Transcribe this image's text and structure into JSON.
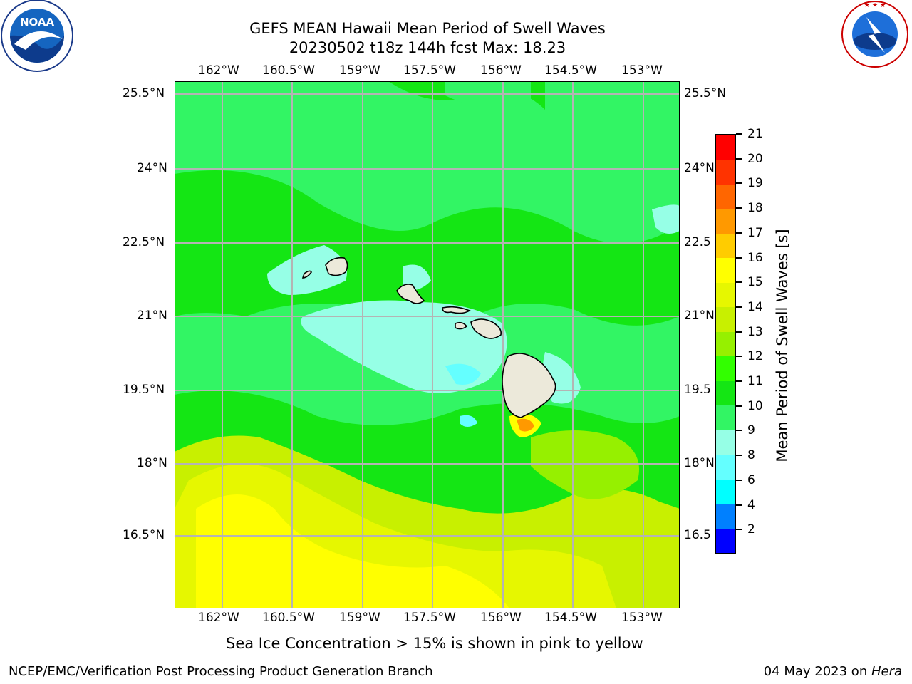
{
  "header": {
    "title_line1": "GEFS MEAN Hawaii Mean Period of Swell Waves",
    "title_line2": "20230502 t18z 144h fcst   Max: 18.23"
  },
  "logos": {
    "noaa": {
      "icon": "noaa-logo-icon",
      "text": "NOAA",
      "ring_text": "NATIONAL OCEANIC AND ATMOSPHERIC ADMINISTRATION · U.S. DEPARTMENT OF COMMERCE"
    },
    "nws": {
      "icon": "nws-logo-icon",
      "ring_text": "NATIONAL WEATHER SERVICE"
    }
  },
  "map": {
    "lon_labels": [
      "162°W",
      "160.5°W",
      "159°W",
      "157.5°W",
      "156°W",
      "154.5°W",
      "153°W"
    ],
    "lat_labels": [
      "25.5°N",
      "24°N",
      "22.5°N",
      "21°N",
      "19.5°N",
      "18°N",
      "16.5°N"
    ],
    "lat_labels_right": [
      "25.5°N",
      "24°N",
      "22.5",
      "21°N",
      "19.5",
      "18°N",
      "16.5"
    ],
    "colors": {
      "land": "#ece9da",
      "grid": "#b4b4b4",
      "background_field": "#32f564"
    }
  },
  "colorbar": {
    "label": "Mean Period of Swell Waves [s]",
    "ticks": [
      "21",
      "20",
      "19",
      "18",
      "17",
      "16",
      "15",
      "14",
      "13",
      "12",
      "11",
      "10",
      "9",
      "8",
      "6",
      "4",
      "2"
    ],
    "colors": [
      "#ff0000",
      "#ff3300",
      "#ff6600",
      "#ff9900",
      "#ffcc00",
      "#ffff00",
      "#e6f700",
      "#c8f000",
      "#96f000",
      "#32ff00",
      "#14e614",
      "#32f564",
      "#96ffe6",
      "#64ffff",
      "#00ffff",
      "#0080ff",
      "#0000ff"
    ]
  },
  "caption": "Sea Ice Concentration > 15% is shown in pink to yellow",
  "footer": {
    "left": "NCEP/EMC/Verification Post Processing Product Generation Branch",
    "right_date": "04 May 2023 on ",
    "right_host": "Hera"
  }
}
